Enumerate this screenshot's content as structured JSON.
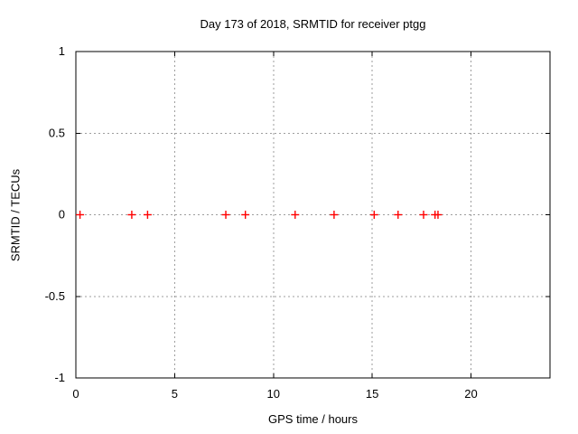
{
  "window": {
    "background": "#ffffff"
  },
  "chart_data": {
    "type": "scatter",
    "title": "Day 173 of 2018, SRMTID for receiver ptgg",
    "xlabel": "GPS time / hours",
    "ylabel": "SRMTID / TECUs",
    "xlim": [
      0,
      24
    ],
    "ylim": [
      -1,
      1
    ],
    "xticks": [
      {
        "value": 0,
        "label": "0"
      },
      {
        "value": 5,
        "label": "5"
      },
      {
        "value": 10,
        "label": "10"
      },
      {
        "value": 15,
        "label": "15"
      },
      {
        "value": 20,
        "label": "20"
      }
    ],
    "yticks": [
      {
        "value": 1,
        "label": "1"
      },
      {
        "value": 0.5,
        "label": "0.5"
      },
      {
        "value": 0,
        "label": "0"
      },
      {
        "value": -0.5,
        "label": "-0.5"
      },
      {
        "value": -1,
        "label": "-1"
      }
    ],
    "grid": true,
    "legend": "none",
    "marker_style": "plus",
    "colors": {
      "marker": "#ff0000",
      "grid": "#9e9e9e",
      "axis": "#000000",
      "text": "#000000"
    },
    "series": [
      {
        "name": "SRMTID",
        "color": "#ff0000",
        "x": [
          0.21,
          2.83,
          3.63,
          7.59,
          8.58,
          11.1,
          13.07,
          15.1,
          16.31,
          17.6,
          18.18,
          18.33
        ],
        "y": [
          0,
          0,
          0,
          0,
          0,
          0,
          0,
          0,
          0,
          0,
          0,
          0
        ]
      }
    ]
  }
}
